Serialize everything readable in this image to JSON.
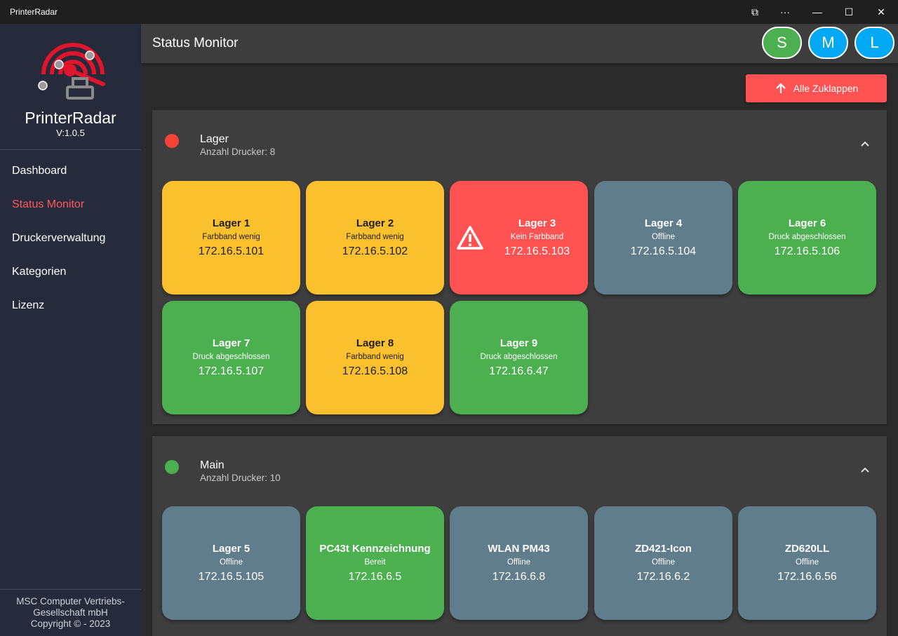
{
  "window": {
    "title": "PrinterRadar",
    "controls": {
      "cast": "⧉",
      "more": "···",
      "minimize": "—",
      "maximize": "☐",
      "close": "✕"
    }
  },
  "sidebar": {
    "brand": "PrinterRadar",
    "version": "V:1.0.5",
    "nav": [
      {
        "label": "Dashboard",
        "active": false
      },
      {
        "label": "Status Monitor",
        "active": true
      },
      {
        "label": "Druckerverwaltung",
        "active": false
      },
      {
        "label": "Kategorien",
        "active": false
      },
      {
        "label": "Lizenz",
        "active": false
      }
    ],
    "footer": {
      "line1": "MSC Computer Vertriebs-",
      "line2": "Gesellschaft mbH",
      "line3": "Copyright © - 2023"
    }
  },
  "header": {
    "title": "Status Monitor",
    "size_buttons": {
      "s": "S",
      "m": "M",
      "l": "L"
    }
  },
  "toolbar": {
    "collapse_all_label": "Alle Zuklappen"
  },
  "groups": [
    {
      "name": "Lager",
      "count": "Anzahl Drucker: 8",
      "status_color": "#f44336",
      "printers": [
        {
          "name": "Lager 1",
          "status": "Farbband wenig",
          "ip": "172.16.5.101",
          "color": "yellow"
        },
        {
          "name": "Lager 2",
          "status": "Farbband wenig",
          "ip": "172.16.5.102",
          "color": "yellow"
        },
        {
          "name": "Lager 3",
          "status": "Kein Farbband",
          "ip": "172.16.5.103",
          "color": "red",
          "icon": "warning-icon"
        },
        {
          "name": "Lager 4",
          "status": "Offline",
          "ip": "172.16.5.104",
          "color": "gray"
        },
        {
          "name": "Lager 6",
          "status": "Druck abgeschlossen",
          "ip": "172.16.5.106",
          "color": "green"
        },
        {
          "name": "Lager 7",
          "status": "Druck abgeschlossen",
          "ip": "172.16.5.107",
          "color": "green"
        },
        {
          "name": "Lager 8",
          "status": "Farbband wenig",
          "ip": "172.16.5.108",
          "color": "yellow"
        },
        {
          "name": "Lager 9",
          "status": "Druck abgeschlossen",
          "ip": "172.16.6.47",
          "color": "green"
        }
      ]
    },
    {
      "name": "Main",
      "count": "Anzahl Drucker: 10",
      "status_color": "#4caf50",
      "printers": [
        {
          "name": "Lager 5",
          "status": "Offline",
          "ip": "172.16.5.105",
          "color": "gray"
        },
        {
          "name": "PC43t Kennzeichnung",
          "status": "Bereit",
          "ip": "172.16.6.5",
          "color": "green"
        },
        {
          "name": "WLAN PM43",
          "status": "Offline",
          "ip": "172.16.6.8",
          "color": "gray"
        },
        {
          "name": "ZD421-Icon",
          "status": "Offline",
          "ip": "172.16.6.2",
          "color": "gray"
        },
        {
          "name": "ZD620LL",
          "status": "Offline",
          "ip": "172.16.6.56",
          "color": "gray"
        }
      ]
    }
  ]
}
